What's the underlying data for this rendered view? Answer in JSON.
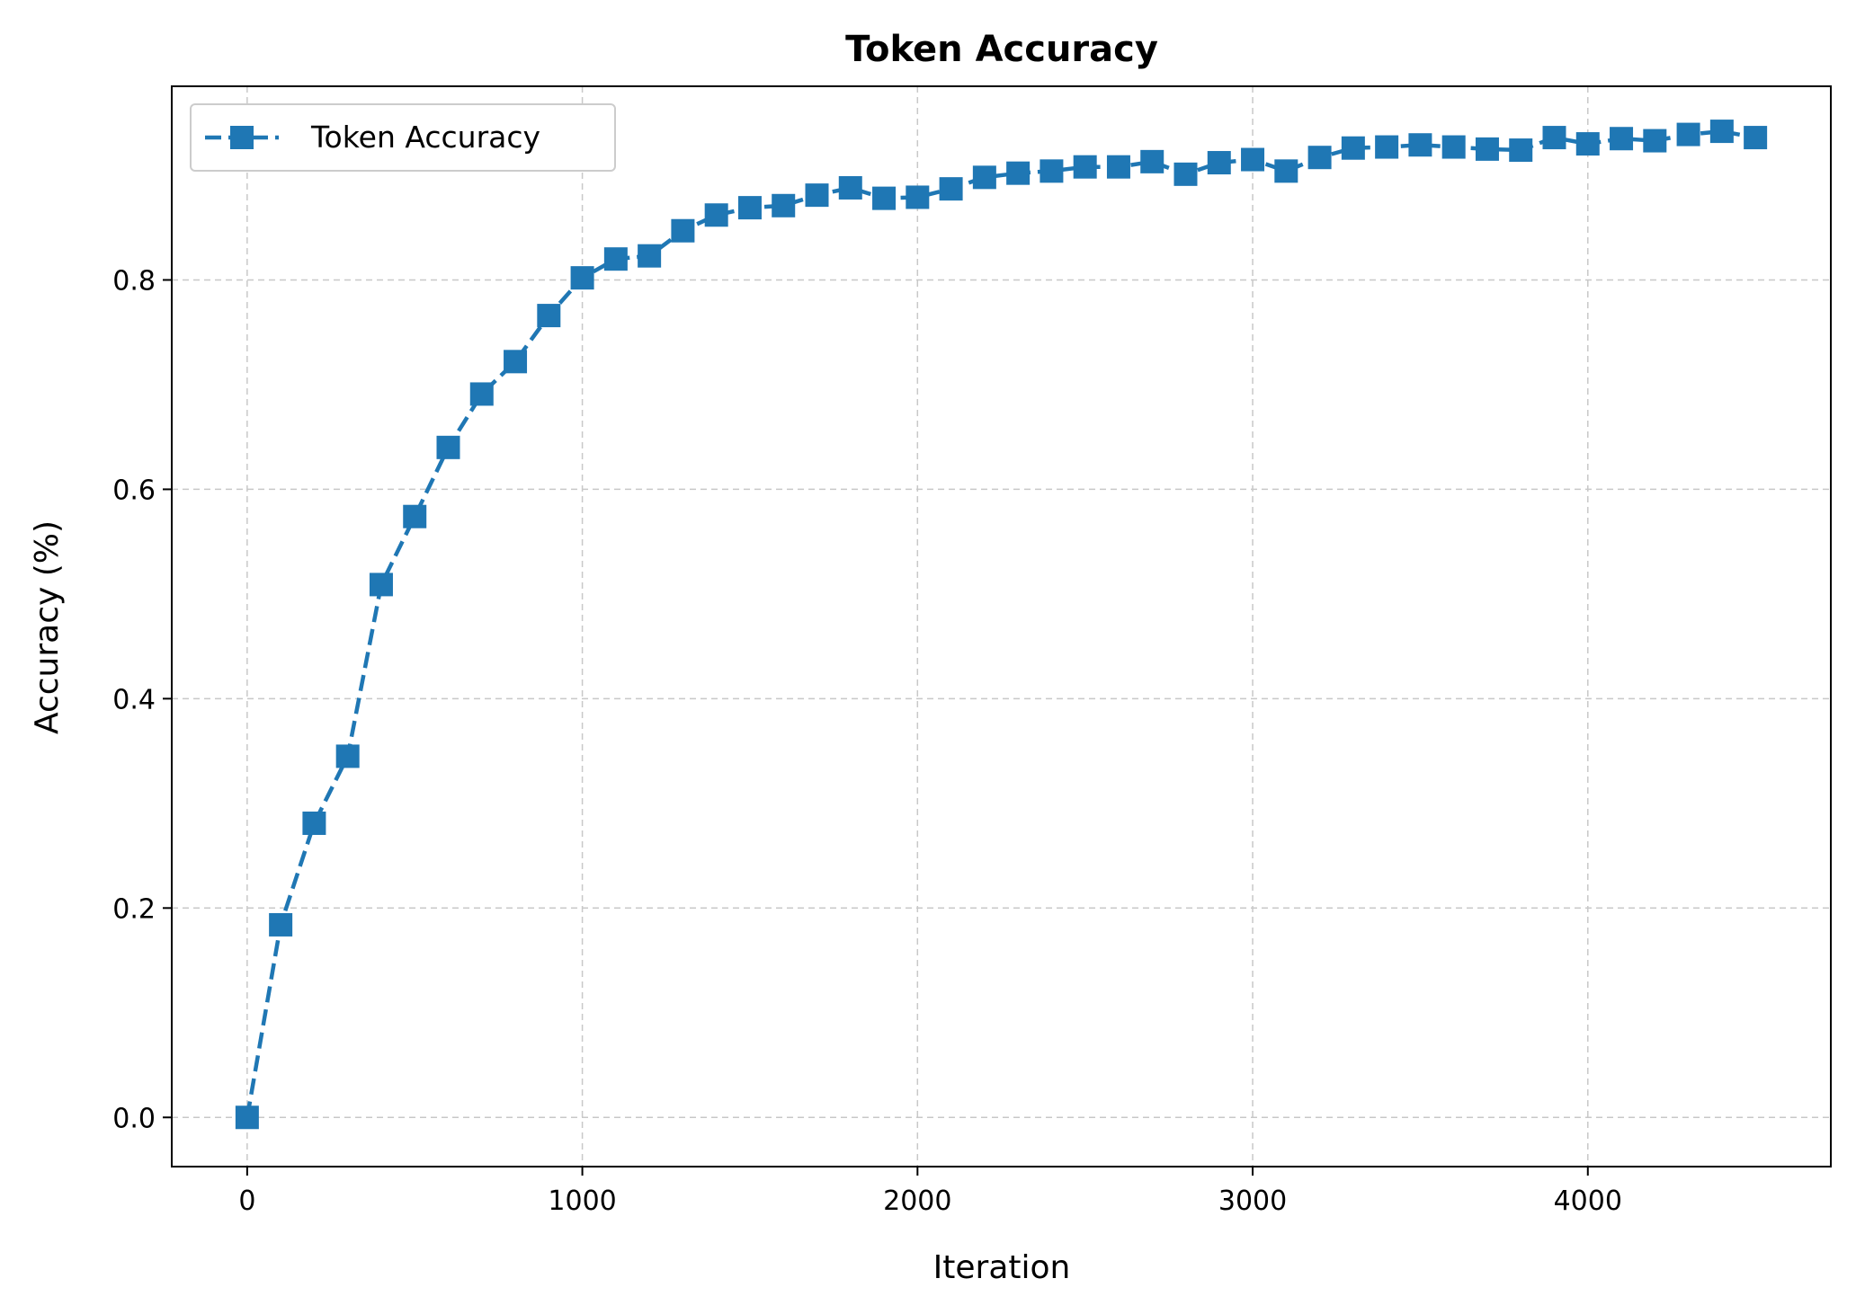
{
  "chart_data": {
    "type": "line",
    "title": "Token Accuracy",
    "xlabel": "Iteration",
    "ylabel": "Accuracy (%)",
    "xlim": [
      -225,
      4725
    ],
    "ylim": [
      -0.047,
      0.985
    ],
    "xticks": [
      0,
      1000,
      2000,
      3000,
      4000
    ],
    "yticks": [
      0.0,
      0.2,
      0.4,
      0.6,
      0.8
    ],
    "xtick_labels": [
      "0",
      "1000",
      "2000",
      "3000",
      "4000"
    ],
    "ytick_labels": [
      "0.0",
      "0.2",
      "0.4",
      "0.6",
      "0.8"
    ],
    "grid": true,
    "legend_position": "top-left",
    "series": [
      {
        "name": "Token Accuracy",
        "color": "#1f77b4",
        "line_style": "dashed",
        "marker": "square",
        "x": [
          0,
          100,
          200,
          300,
          400,
          500,
          600,
          700,
          800,
          900,
          1000,
          1100,
          1200,
          1300,
          1400,
          1500,
          1600,
          1700,
          1800,
          1900,
          2000,
          2100,
          2200,
          2300,
          2400,
          2500,
          2600,
          2700,
          2800,
          2900,
          3000,
          3100,
          3200,
          3300,
          3400,
          3500,
          3600,
          3700,
          3800,
          3900,
          4000,
          4100,
          4200,
          4300,
          4400,
          4500
        ],
        "y": [
          0.0,
          0.184,
          0.281,
          0.345,
          0.509,
          0.574,
          0.64,
          0.691,
          0.722,
          0.766,
          0.802,
          0.82,
          0.823,
          0.847,
          0.862,
          0.869,
          0.871,
          0.881,
          0.888,
          0.878,
          0.879,
          0.887,
          0.898,
          0.902,
          0.904,
          0.908,
          0.908,
          0.913,
          0.901,
          0.912,
          0.915,
          0.904,
          0.917,
          0.926,
          0.927,
          0.929,
          0.927,
          0.925,
          0.924,
          0.936,
          0.93,
          0.935,
          0.933,
          0.939,
          0.942,
          0.936
        ]
      }
    ]
  }
}
